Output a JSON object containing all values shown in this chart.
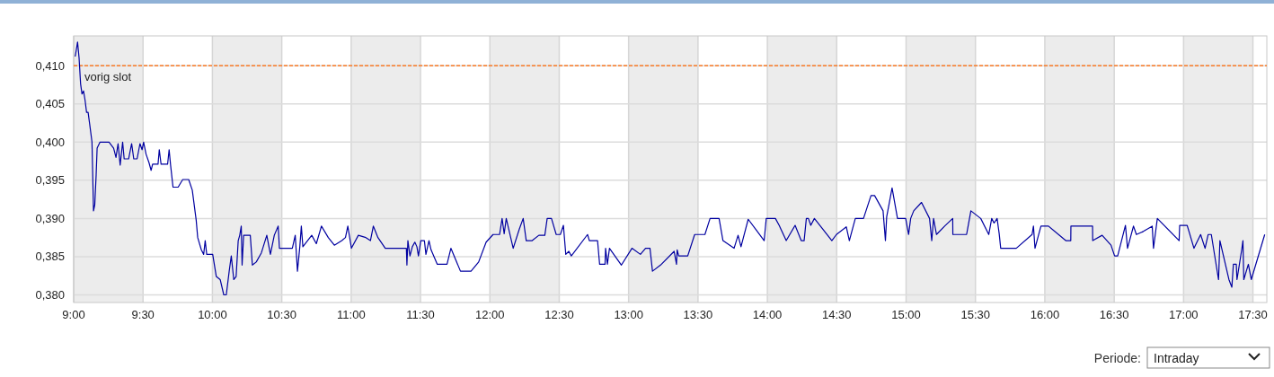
{
  "chart_data": {
    "type": "line",
    "xlim": [
      9,
      17.6
    ],
    "ylim": [
      0.379,
      0.4139
    ],
    "xticks": [
      {
        "value": 9,
        "label": "9:00"
      },
      {
        "value": 9.5,
        "label": "9:30"
      },
      {
        "value": 10,
        "label": "10:00"
      },
      {
        "value": 10.5,
        "label": "10:30"
      },
      {
        "value": 11,
        "label": "11:00"
      },
      {
        "value": 11.5,
        "label": "11:30"
      },
      {
        "value": 12,
        "label": "12:00"
      },
      {
        "value": 12.5,
        "label": "12:30"
      },
      {
        "value": 13,
        "label": "13:00"
      },
      {
        "value": 13.5,
        "label": "13:30"
      },
      {
        "value": 14,
        "label": "14:00"
      },
      {
        "value": 14.5,
        "label": "14:30"
      },
      {
        "value": 15,
        "label": "15:00"
      },
      {
        "value": 15.5,
        "label": "15:30"
      },
      {
        "value": 16,
        "label": "16:00"
      },
      {
        "value": 16.5,
        "label": "16:30"
      },
      {
        "value": 17,
        "label": "17:00"
      },
      {
        "value": 17.5,
        "label": "17:30"
      }
    ],
    "yticks": [
      {
        "value": 0.38,
        "label": "0,380"
      },
      {
        "value": 0.385,
        "label": "0,385"
      },
      {
        "value": 0.39,
        "label": "0,390"
      },
      {
        "value": 0.395,
        "label": "0,395"
      },
      {
        "value": 0.4,
        "label": "0,400"
      },
      {
        "value": 0.405,
        "label": "0,405"
      },
      {
        "value": 0.41,
        "label": "0,410"
      }
    ],
    "grid": true,
    "marker": "none",
    "line_style": "solid",
    "ref_lines": [
      {
        "axis": "y",
        "value": 0.41,
        "label": "vorig slot",
        "color": "#ff6600",
        "line_style": "dashed"
      }
    ],
    "bands": [
      {
        "axis": "x",
        "from": 9,
        "to": 9.5,
        "color": "#ececec"
      },
      {
        "axis": "x",
        "from": 10,
        "to": 10.5,
        "color": "#ececec"
      },
      {
        "axis": "x",
        "from": 11,
        "to": 11.5,
        "color": "#ececec"
      },
      {
        "axis": "x",
        "from": 12,
        "to": 12.5,
        "color": "#ececec"
      },
      {
        "axis": "x",
        "from": 13,
        "to": 13.5,
        "color": "#ececec"
      },
      {
        "axis": "x",
        "from": 14,
        "to": 14.5,
        "color": "#ececec"
      },
      {
        "axis": "x",
        "from": 15,
        "to": 15.5,
        "color": "#ececec"
      },
      {
        "axis": "x",
        "from": 16,
        "to": 16.5,
        "color": "#ececec"
      },
      {
        "axis": "x",
        "from": 17,
        "to": 17.5,
        "color": "#ececec"
      }
    ],
    "annotations": [
      "Periode:",
      "Intraday"
    ],
    "series": [
      {
        "color": "#0000a0",
        "x": [
          9.011,
          9.028,
          9.039,
          9.05,
          9.06,
          9.071,
          9.082,
          9.093,
          9.104,
          9.115,
          9.132,
          9.143,
          9.152,
          9.162,
          9.169,
          9.19,
          9.255,
          9.288,
          9.305,
          9.32,
          9.335,
          9.353,
          9.364,
          9.396,
          9.418,
          9.433,
          9.457,
          9.478,
          9.493,
          9.504,
          9.522,
          9.543,
          9.558,
          9.569,
          9.608,
          9.617,
          9.63,
          9.677,
          9.688,
          9.699,
          9.716,
          9.753,
          9.786,
          9.829,
          9.855,
          9.883,
          9.894,
          9.92,
          9.937,
          9.948,
          9.959,
          10.002,
          10.028,
          10.056,
          10.082,
          10.1,
          10.121,
          10.136,
          10.154,
          10.171,
          10.186,
          10.197,
          10.208,
          10.214,
          10.225,
          10.273,
          10.288,
          10.316,
          10.353,
          10.392,
          10.418,
          10.446,
          10.474,
          10.483,
          10.576,
          10.597,
          10.613,
          10.63,
          10.641,
          10.652,
          10.716,
          10.749,
          10.786,
          10.835,
          10.879,
          10.933,
          10.959,
          10.976,
          11.002,
          11.052,
          11.106,
          11.139,
          11.16,
          11.193,
          11.246,
          11.398,
          11.402,
          11.409,
          11.424,
          11.441,
          11.459,
          11.474,
          11.485,
          11.502,
          11.528,
          11.539,
          11.561,
          11.576,
          11.621,
          11.691,
          11.719,
          11.788,
          11.864,
          11.919,
          11.973,
          12.023,
          12.07,
          12.088,
          12.103,
          12.118,
          12.168,
          12.212,
          12.24,
          12.262,
          12.305,
          12.353,
          12.396,
          12.413,
          12.444,
          12.478,
          12.508,
          12.53,
          12.547,
          12.569,
          12.587,
          12.704,
          12.717,
          12.776,
          12.791,
          12.83,
          12.834,
          12.847,
          12.862,
          12.948,
          13.024,
          13.085,
          13.122,
          13.154,
          13.172,
          13.23,
          13.328,
          13.345,
          13.35,
          13.361,
          13.426,
          13.476,
          13.55,
          13.587,
          13.652,
          13.68,
          13.76,
          13.789,
          13.81,
          13.862,
          13.977,
          13.992,
          14.058,
          14.085,
          14.136,
          14.2,
          14.244,
          14.265,
          14.281,
          14.296,
          14.313,
          14.339,
          14.465,
          14.498,
          14.569,
          14.591,
          14.634,
          14.693,
          14.747,
          14.773,
          14.834,
          14.851,
          14.86,
          14.899,
          14.938,
          14.997,
          15.018,
          15.033,
          15.055,
          15.111,
          15.169,
          15.185,
          15.198,
          15.219,
          15.278,
          15.336,
          15.337,
          15.436,
          15.467,
          15.538,
          15.596,
          15.617,
          15.634,
          15.656,
          15.671,
          15.682,
          15.714,
          15.794,
          15.908,
          15.918,
          15.929,
          15.972,
          16.026,
          16.151,
          16.187,
          16.188,
          16.344,
          16.345,
          16.413,
          16.477,
          16.503,
          16.525,
          16.581,
          16.596,
          16.639,
          16.66,
          16.71,
          16.774,
          16.783,
          16.811,
          16.968,
          16.972,
          17.026,
          17.075,
          17.123,
          17.155,
          17.177,
          17.2,
          17.252,
          17.262,
          17.327,
          17.348,
          17.359,
          17.38,
          17.385,
          17.419,
          17.428,
          17.434,
          17.467,
          17.488,
          17.585
        ],
        "values": [
          0.4112,
          0.4131,
          0.411,
          0.4076,
          0.4063,
          0.4067,
          0.4055,
          0.4039,
          0.4039,
          0.4024,
          0.4,
          0.391,
          0.3918,
          0.3957,
          0.3992,
          0.4,
          0.4,
          0.3992,
          0.398,
          0.3998,
          0.397,
          0.4,
          0.3978,
          0.3978,
          0.3998,
          0.3978,
          0.3978,
          0.3998,
          0.399,
          0.4,
          0.3984,
          0.3973,
          0.3963,
          0.3971,
          0.3971,
          0.399,
          0.3971,
          0.3971,
          0.399,
          0.3969,
          0.3941,
          0.3941,
          0.3951,
          0.3951,
          0.3937,
          0.3898,
          0.3875,
          0.3859,
          0.3853,
          0.3871,
          0.3853,
          0.3853,
          0.3824,
          0.382,
          0.38,
          0.38,
          0.3831,
          0.3851,
          0.382,
          0.3824,
          0.3871,
          0.3878,
          0.389,
          0.3839,
          0.3878,
          0.3878,
          0.3839,
          0.3843,
          0.3855,
          0.3878,
          0.3853,
          0.3878,
          0.389,
          0.3861,
          0.3861,
          0.3878,
          0.3831,
          0.3863,
          0.389,
          0.3863,
          0.3878,
          0.3867,
          0.389,
          0.3875,
          0.3865,
          0.3871,
          0.3875,
          0.389,
          0.3861,
          0.3878,
          0.3875,
          0.3871,
          0.389,
          0.3875,
          0.3861,
          0.3861,
          0.3839,
          0.3871,
          0.3851,
          0.3863,
          0.3869,
          0.3863,
          0.3851,
          0.3871,
          0.3871,
          0.3853,
          0.3871,
          0.3859,
          0.384,
          0.384,
          0.3861,
          0.3831,
          0.3831,
          0.3843,
          0.3869,
          0.3879,
          0.3879,
          0.39,
          0.388,
          0.39,
          0.3861,
          0.3886,
          0.39,
          0.3871,
          0.3871,
          0.3878,
          0.3878,
          0.39,
          0.39,
          0.3879,
          0.3879,
          0.3891,
          0.3853,
          0.3857,
          0.3851,
          0.3879,
          0.3871,
          0.3871,
          0.384,
          0.384,
          0.3861,
          0.384,
          0.3861,
          0.3839,
          0.3861,
          0.3853,
          0.3861,
          0.3861,
          0.3831,
          0.3839,
          0.3857,
          0.384,
          0.3859,
          0.3851,
          0.3851,
          0.3879,
          0.3879,
          0.39,
          0.39,
          0.3871,
          0.3861,
          0.3878,
          0.3863,
          0.3899,
          0.3871,
          0.39,
          0.39,
          0.3891,
          0.3871,
          0.3891,
          0.3871,
          0.3871,
          0.39,
          0.39,
          0.3891,
          0.39,
          0.3871,
          0.3879,
          0.3889,
          0.3871,
          0.39,
          0.39,
          0.393,
          0.393,
          0.391,
          0.3871,
          0.3902,
          0.394,
          0.39,
          0.39,
          0.3879,
          0.39,
          0.391,
          0.3921,
          0.39,
          0.3871,
          0.39,
          0.3879,
          0.389,
          0.39,
          0.3879,
          0.3879,
          0.391,
          0.39,
          0.3879,
          0.39,
          0.3894,
          0.39,
          0.388,
          0.3861,
          0.3861,
          0.3861,
          0.3879,
          0.389,
          0.3861,
          0.389,
          0.389,
          0.3871,
          0.3871,
          0.389,
          0.389,
          0.3871,
          0.3878,
          0.3865,
          0.3851,
          0.3851,
          0.3891,
          0.3861,
          0.389,
          0.3879,
          0.3883,
          0.389,
          0.3861,
          0.39,
          0.3871,
          0.3891,
          0.3891,
          0.3861,
          0.3879,
          0.3861,
          0.3879,
          0.3879,
          0.382,
          0.3871,
          0.382,
          0.381,
          0.384,
          0.384,
          0.382,
          0.3859,
          0.3871,
          0.382,
          0.384,
          0.382,
          0.3879
        ]
      }
    ]
  }
}
